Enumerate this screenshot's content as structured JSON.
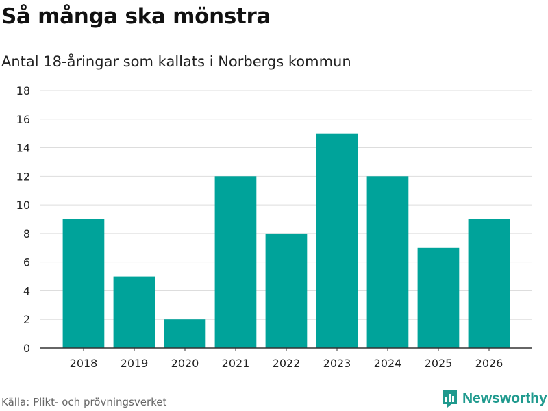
{
  "header": {
    "title": "Så många ska mönstra",
    "subtitle": "Antal 18-åringar som kallats i Norbergs kommun"
  },
  "footer": {
    "source": "Källa: Plikt- och prövningsverket",
    "brand": "Newsworthy"
  },
  "colors": {
    "bar": "#00a39a",
    "grid": "#dddddd",
    "axis": "#333333",
    "brand": "#1f9a8e"
  },
  "chart_data": {
    "type": "bar",
    "title": "Så många ska mönstra",
    "subtitle": "Antal 18-åringar som kallats i Norbergs kommun",
    "xlabel": "",
    "ylabel": "",
    "categories": [
      "2018",
      "2019",
      "2020",
      "2021",
      "2022",
      "2023",
      "2024",
      "2025",
      "2026"
    ],
    "values": [
      9,
      5,
      2,
      12,
      8,
      15,
      12,
      7,
      9
    ],
    "ylim": [
      0,
      18
    ],
    "yticks": [
      0,
      2,
      4,
      6,
      8,
      10,
      12,
      14,
      16,
      18
    ],
    "grid": true,
    "legend": "none"
  }
}
